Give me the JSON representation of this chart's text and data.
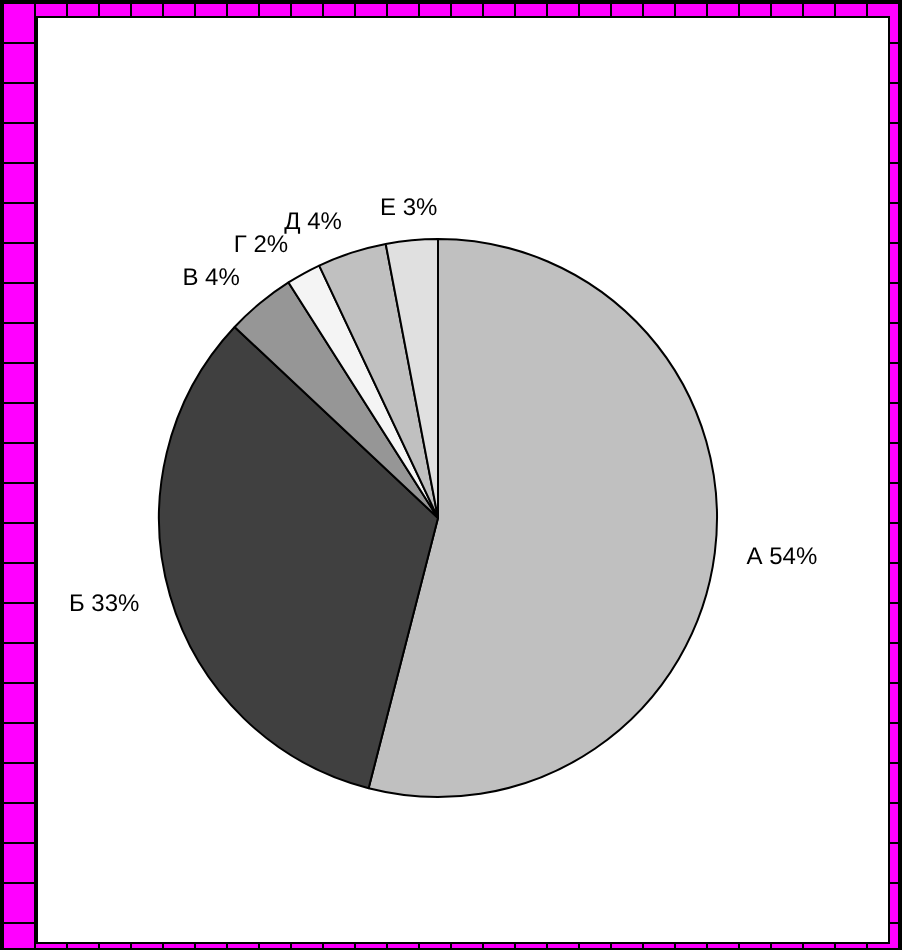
{
  "chart_data": {
    "type": "pie",
    "categories": [
      "А",
      "Б",
      "В",
      "Г",
      "Д",
      "Е"
    ],
    "values": [
      54,
      33,
      4,
      2,
      4,
      3
    ],
    "value_labels": [
      "54%",
      "33%",
      "4%",
      "2%",
      "4%",
      "3%"
    ],
    "colors": [
      "#c0c0c0",
      "#404040",
      "#969696",
      "#f4f4f4",
      "#c0c0c0",
      "#e0e0e0"
    ],
    "legend": false
  }
}
